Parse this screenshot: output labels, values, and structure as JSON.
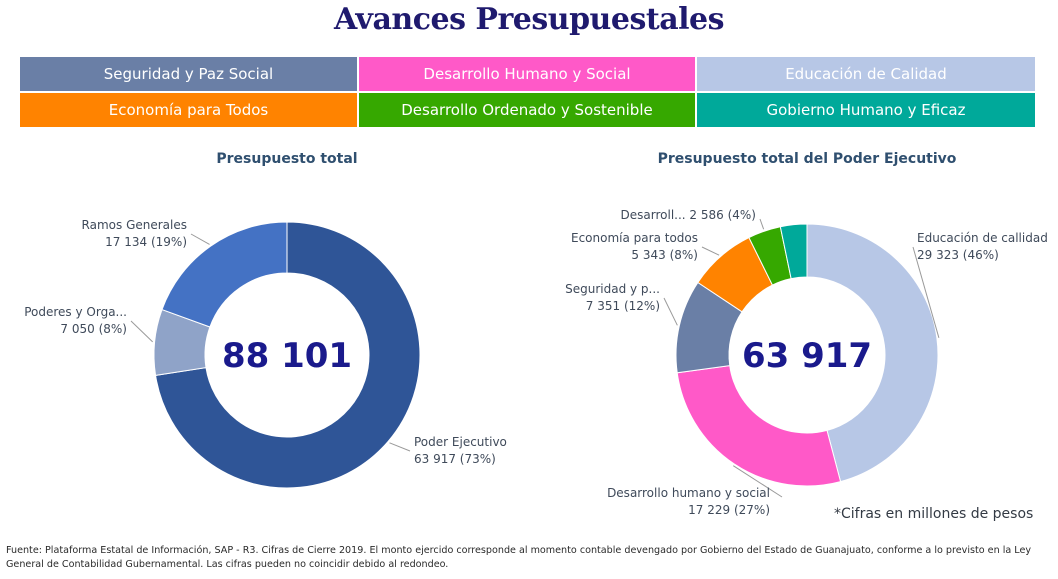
{
  "title": "Avances Presupuestales",
  "tabs": [
    {
      "label": "Seguridad y Paz Social",
      "color": "#6a7fa6"
    },
    {
      "label": "Desarrollo Humano y Social",
      "color": "#ff59c8"
    },
    {
      "label": "Educación de Calidad",
      "color": "#b7c7e6"
    },
    {
      "label": "Economía para Todos",
      "color": "#ff8300"
    },
    {
      "label": "Desarrollo Ordenado y Sostenible",
      "color": "#36a800"
    },
    {
      "label": "Gobierno Humano y Eficaz",
      "color": "#00a99a"
    }
  ],
  "chart_data": [
    {
      "type": "pie",
      "title": "Presupuesto total",
      "center_label": "88 101",
      "slices": [
        {
          "label": "Poder Ejecutivo",
          "value": 63917,
          "value_label": "63 917 (73%)",
          "color": "#2f5597"
        },
        {
          "label": "Poderes y Orga...",
          "value": 7050,
          "value_label": "7 050 (8%)",
          "color": "#8fa3c8"
        },
        {
          "label": "Ramos Generales",
          "value": 17134,
          "value_label": "17 134 (19%)",
          "color": "#4472c4"
        }
      ]
    },
    {
      "type": "pie",
      "title": "Presupuesto total del Poder Ejecutivo",
      "center_label": "63 917",
      "slices": [
        {
          "label": "Educación de callidad",
          "value": 29323,
          "value_label": "29 323 (46%)",
          "color": "#b7c7e6"
        },
        {
          "label": "Desarrollo humano y social",
          "value": 17229,
          "value_label": "17 229 (27%)",
          "color": "#ff59c8"
        },
        {
          "label": "Seguridad y p...",
          "value": 7351,
          "value_label": "7 351 (12%)",
          "color": "#6a7fa6"
        },
        {
          "label": "Economía para todos",
          "value": 5343,
          "value_label": "5 343 (8%)",
          "color": "#ff8300"
        },
        {
          "label": "Desarroll...",
          "value": 2586,
          "value_label": "2 586 (4%)",
          "color": "#36a800"
        },
        {
          "label": "",
          "value": 2085,
          "value_label": "",
          "color": "#00a99a"
        }
      ]
    }
  ],
  "note": "*Cifras en millones de pesos",
  "footer": "Fuente: Plataforma Estatal de Información, SAP - R3. Cifras de Cierre 2019. El monto ejercido corresponde al momento contable devengado por Gobierno del Estado de Guanajuato, conforme a lo previsto en la Ley General de Contabilidad Gubernamental. Las cifras pueden no coincidir debido al redondeo."
}
